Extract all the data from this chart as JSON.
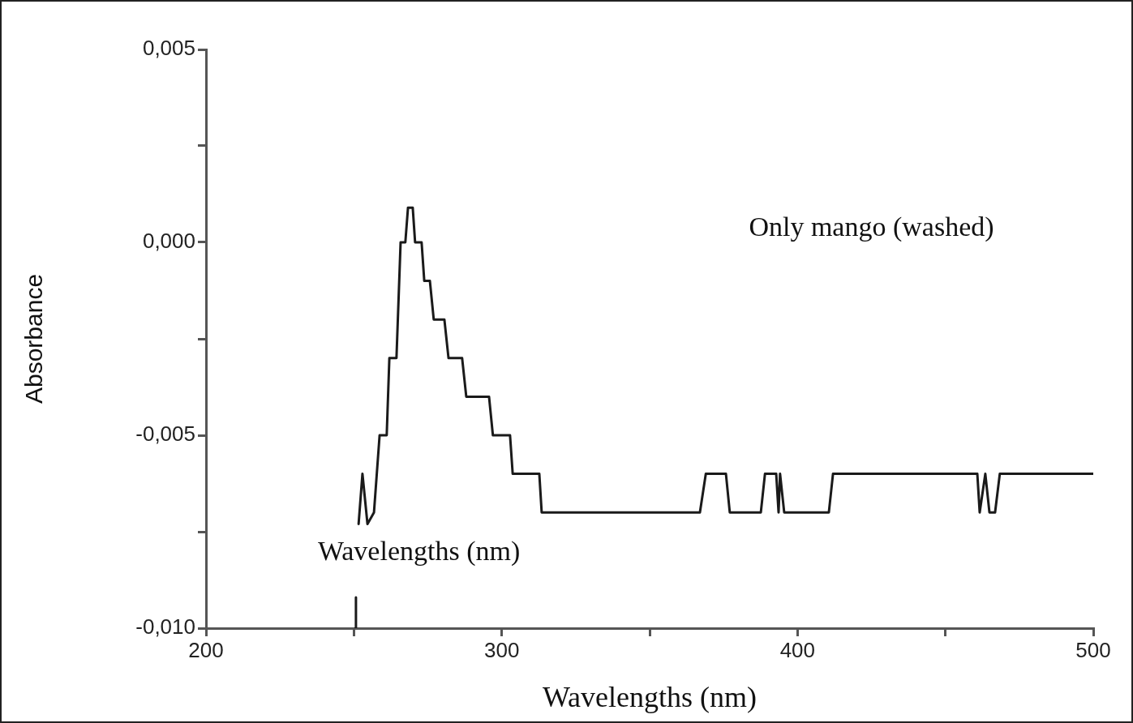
{
  "chart_data": {
    "type": "line",
    "xlabel": "Wavelengths (nm)",
    "ylabel": "Absorbance",
    "annotations": [
      "Only mango (washed)",
      "Wavelengths (nm)"
    ],
    "xlim": [
      200,
      500
    ],
    "xticks": [
      200,
      {
        "value": 250,
        "label": null
      },
      300,
      {
        "value": 350,
        "label": null
      },
      400,
      {
        "value": 450,
        "label": null
      },
      500
    ],
    "ylim": [
      -0.01,
      0.005
    ],
    "yticks": [
      {
        "value": -0.01,
        "label": "-0,010"
      },
      {
        "value": -0.0075,
        "label": null
      },
      {
        "value": -0.005,
        "label": "-0,005"
      },
      {
        "value": -0.0025,
        "label": null
      },
      {
        "value": 0,
        "label": "0,000"
      },
      {
        "value": 0.0025,
        "label": null
      },
      {
        "value": 0.005,
        "label": "0,005"
      }
    ],
    "series": [
      {
        "color": "#1a1a1a",
        "x": [
          250.5,
          250.7,
          251,
          251.6,
          252.9,
          254.6,
          256.8,
          258.7,
          261.1,
          262,
          264.4,
          265.8,
          267.4,
          268.3,
          269.9,
          270.7,
          272.9,
          273.8,
          275.7,
          277,
          280.6,
          282,
          286.6,
          288,
          295.7,
          297,
          302.8,
          303.7,
          312.7,
          313.5,
          367,
          369,
          375.8,
          377.1,
          387.6,
          389,
          392.8,
          393.6,
          394.1,
          395.5,
          410.6,
          412,
          460.8,
          461.6,
          463.5,
          464.9,
          466.8,
          468.4,
          500
        ],
        "values": [
          -0.01,
          -0.0092,
          null,
          -0.0073,
          -0.006,
          -0.0073,
          -0.007,
          -0.005,
          -0.005,
          -0.003,
          -0.003,
          0,
          0,
          0.0009,
          0.0009,
          0,
          0,
          -0.001,
          -0.001,
          -0.002,
          -0.002,
          -0.003,
          -0.003,
          -0.004,
          -0.004,
          -0.005,
          -0.005,
          -0.006,
          -0.006,
          -0.007,
          -0.007,
          -0.006,
          -0.006,
          -0.007,
          -0.007,
          -0.006,
          -0.006,
          -0.007,
          -0.006,
          -0.007,
          -0.007,
          -0.006,
          -0.006,
          -0.007,
          -0.006,
          -0.007,
          -0.007,
          -0.006,
          -0.006
        ]
      }
    ]
  }
}
